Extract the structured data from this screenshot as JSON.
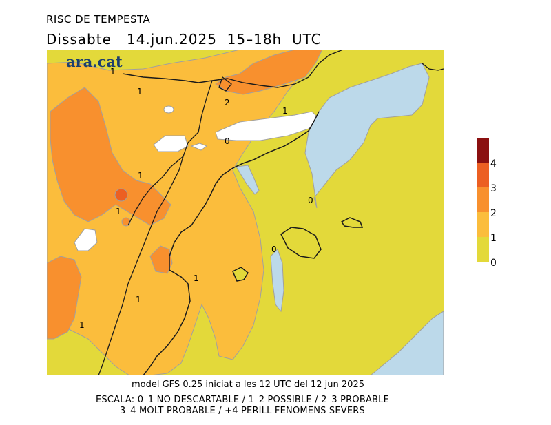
{
  "header": {
    "title": "RISC DE TEMPESTA",
    "subtitle": "Dissabte   14.jun.2025  15–18h  UTC"
  },
  "brand": {
    "logo_text": "ara.cat"
  },
  "map": {
    "contour_labels": [
      "1",
      "1",
      "2",
      "1",
      "0",
      "1",
      "1",
      "0",
      "0",
      "1",
      "1",
      "1"
    ],
    "colors": {
      "level_0_1": "#e3d93a",
      "level_1_2": "#fbbd3c",
      "level_2_3": "#f8902e",
      "level_3_4": "#ec5f22",
      "level_4_plus": "#8b1010",
      "sea": "#bcd9ea",
      "no_data": "#ffffff",
      "borders": "#1a1a1a",
      "contours": "#a0a0a0"
    }
  },
  "legend": {
    "ticks": [
      "4",
      "3",
      "2",
      "1",
      "0"
    ]
  },
  "footer": {
    "model_line": "model GFS 0.25 iniciat a les 12 UTC del 12 jun 2025",
    "scale_line_1": "ESCALA: 0–1 NO DESCARTABLE / 1–2 POSSIBLE / 2–3 PROBABLE",
    "scale_line_2": "3–4 MOLT PROBABLE / +4 PERILL FENOMENS SEVERS"
  }
}
